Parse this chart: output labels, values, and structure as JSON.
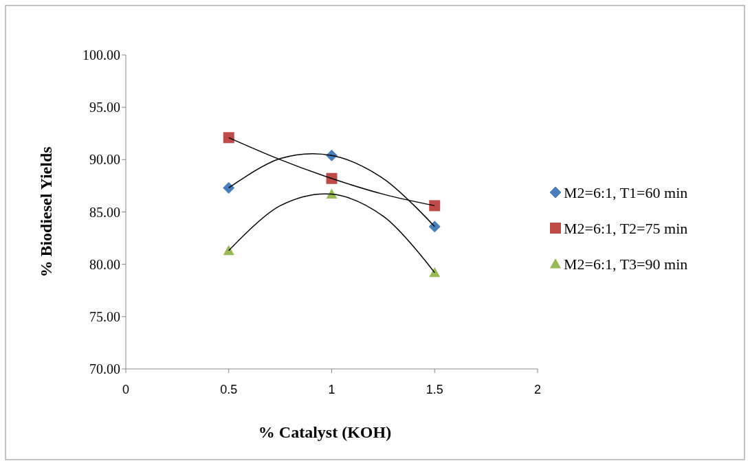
{
  "chart_data": {
    "type": "scatter",
    "xlabel": "% Catalyst (KOH)",
    "ylabel": "% Biodiesel Yields",
    "xlim": [
      0,
      2
    ],
    "xticks": [
      0,
      0.5,
      1,
      1.5,
      2
    ],
    "ylim": [
      70,
      100
    ],
    "yticks": [
      {
        "value": 70,
        "label": "70.00"
      },
      {
        "value": 75,
        "label": "75.00"
      },
      {
        "value": 80,
        "label": "80.00"
      },
      {
        "value": 85,
        "label": "85.00"
      },
      {
        "value": 90,
        "label": "90.00"
      },
      {
        "value": 95,
        "label": "95.00"
      },
      {
        "value": 100,
        "label": "100.00"
      }
    ],
    "grid": false,
    "legend": "right",
    "series": [
      {
        "name": "M2=6:1, T1=60 min",
        "color": "#4a7ebb",
        "marker": "diamond",
        "x": [
          0.5,
          1,
          1.5
        ],
        "values": [
          87.3,
          90.4,
          83.6
        ]
      },
      {
        "name": "M2=6:1, T2=75 min",
        "color": "#be4b48",
        "marker": "square",
        "x": [
          0.5,
          1,
          1.5
        ],
        "values": [
          92.1,
          88.2,
          85.6
        ]
      },
      {
        "name": "M2=6:1, T3=90 min",
        "color": "#98b954",
        "marker": "triangle",
        "x": [
          0.5,
          1,
          1.5
        ],
        "values": [
          81.3,
          86.7,
          79.2
        ]
      },
      {
        "type": "line",
        "color": "#000000",
        "marker": "none",
        "x": [
          0.5,
          0.75,
          1,
          1.25,
          1.5
        ],
        "values": [
          87.3,
          90.1,
          90.4,
          88.2,
          83.6
        ]
      },
      {
        "type": "line",
        "color": "#000000",
        "marker": "none",
        "x": [
          0.5,
          0.75,
          1,
          1.25,
          1.5
        ],
        "values": [
          92.1,
          90.0,
          88.2,
          86.7,
          85.6
        ]
      },
      {
        "type": "line",
        "color": "#000000",
        "marker": "none",
        "x": [
          0.5,
          0.75,
          1,
          1.25,
          1.5
        ],
        "values": [
          81.3,
          85.6,
          86.7,
          84.6,
          79.2
        ]
      }
    ]
  }
}
